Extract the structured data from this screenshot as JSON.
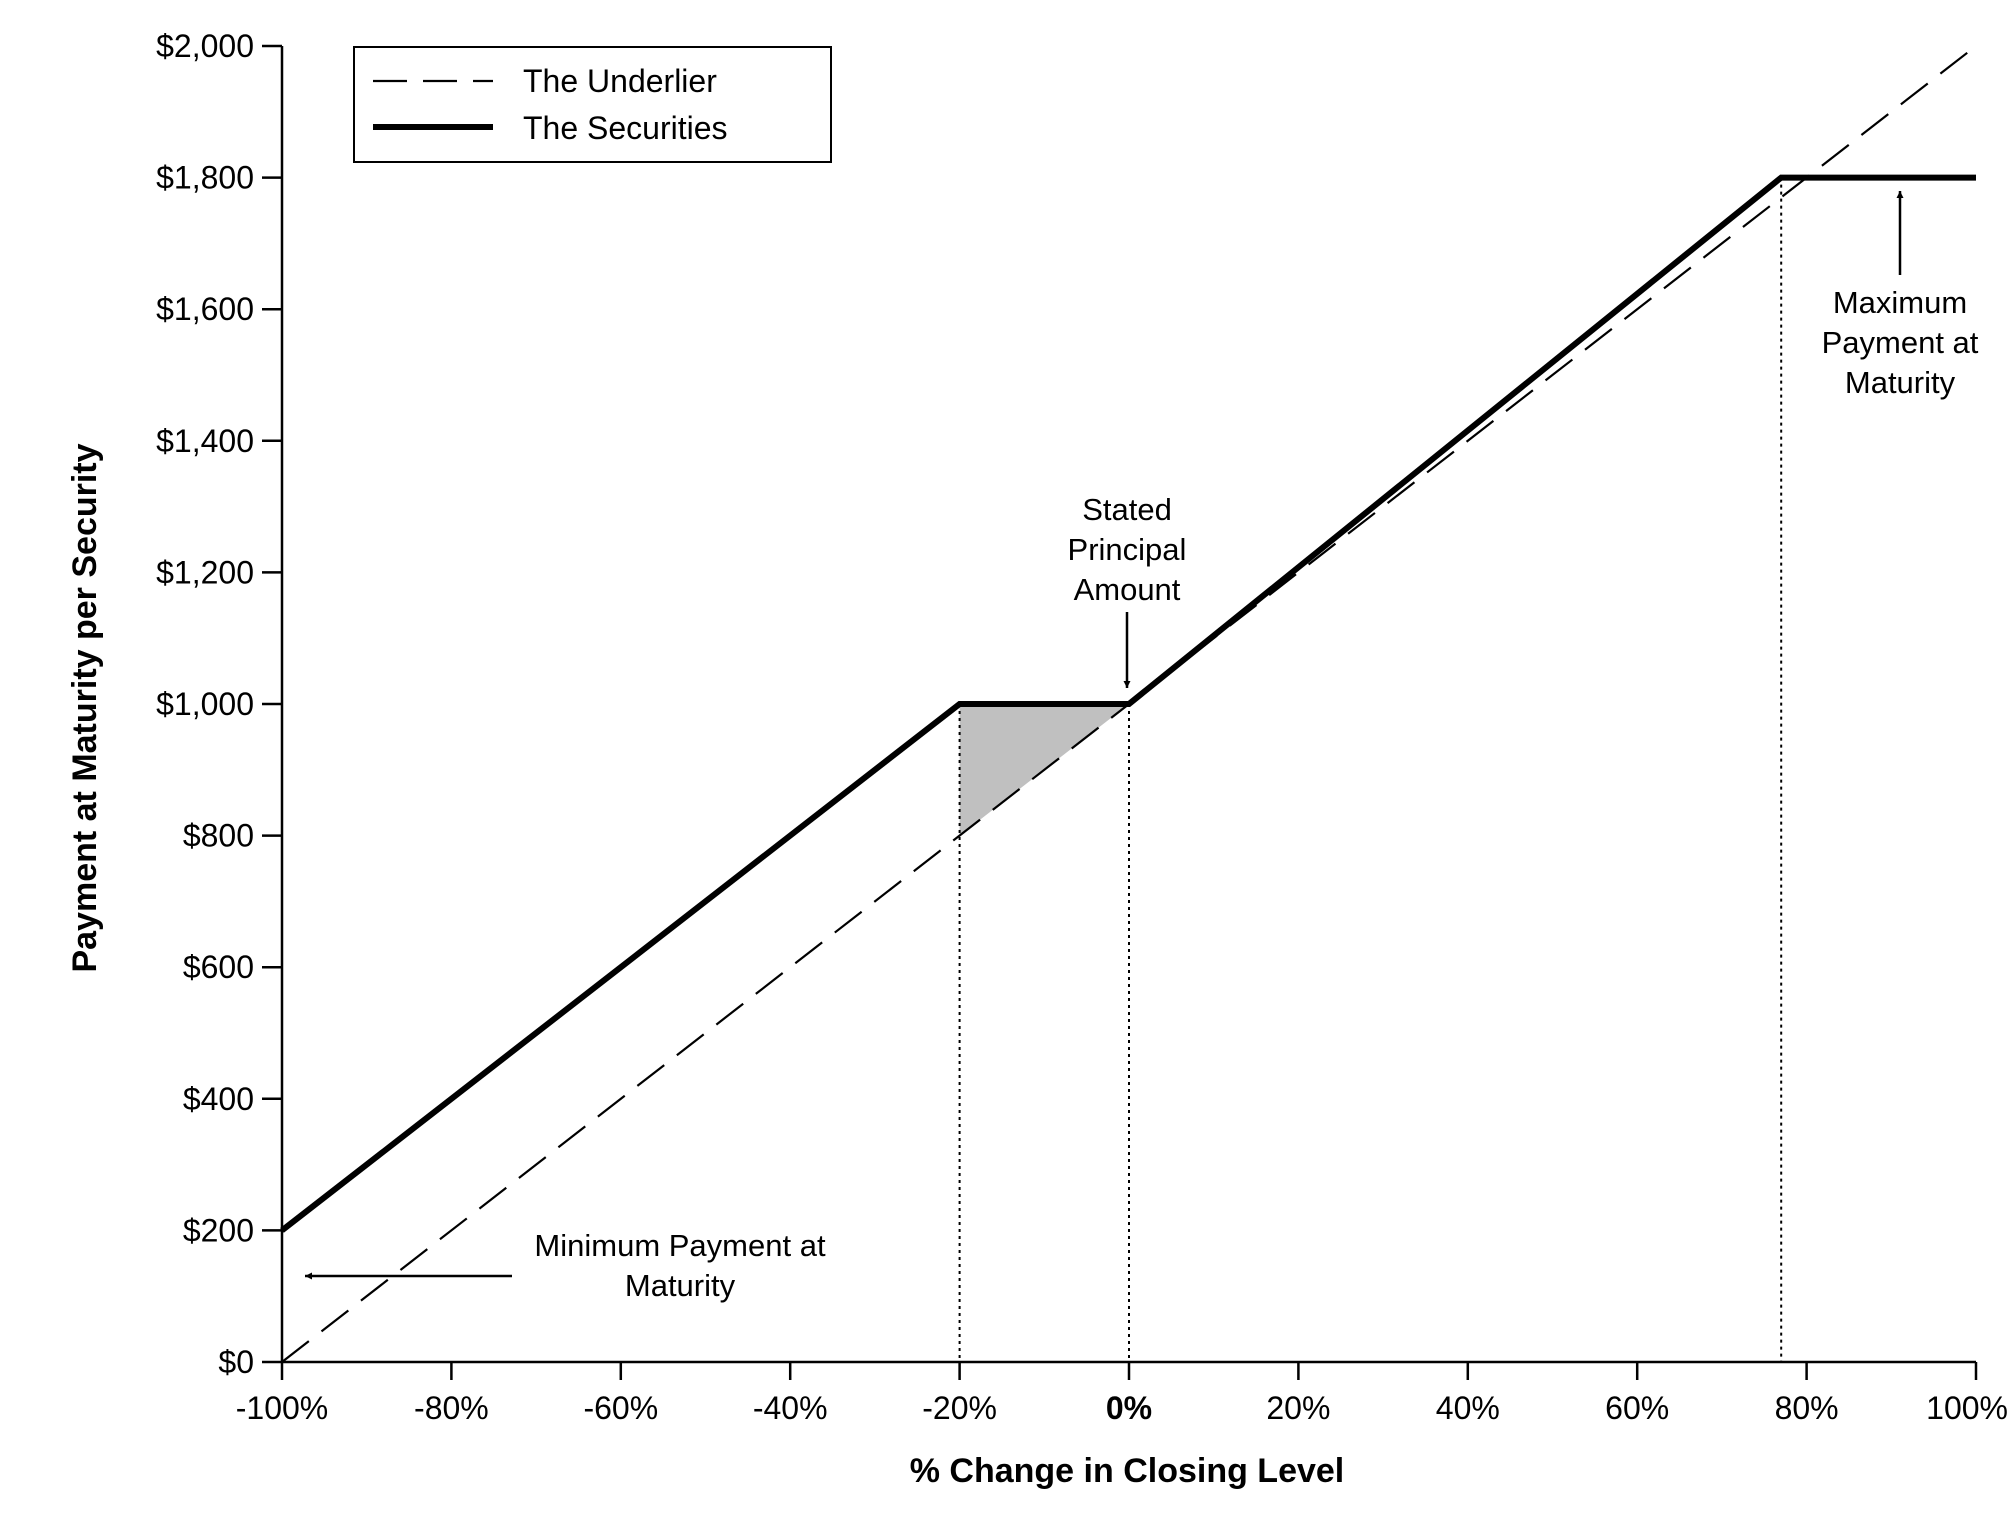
{
  "chart_data": {
    "type": "line",
    "xlabel": "% Change in Closing Level",
    "ylabel": "Payment at Maturity per Security",
    "xlim": [
      -100,
      100
    ],
    "ylim": [
      0,
      2000
    ],
    "x_ticks": [
      -100,
      -80,
      -60,
      -40,
      -20,
      0,
      20,
      40,
      60,
      80,
      100
    ],
    "x_tick_labels": [
      "-100%",
      "-80%",
      "-60%",
      "-40%",
      "-20%",
      "0%",
      "20%",
      "40%",
      "60%",
      "80%",
      "100%"
    ],
    "y_ticks": [
      0,
      200,
      400,
      600,
      800,
      1000,
      1200,
      1400,
      1600,
      1800,
      2000
    ],
    "y_tick_labels": [
      "$0",
      "$200",
      "$400",
      "$600",
      "$800",
      "$1,000",
      "$1,200",
      "$1,400",
      "$1,600",
      "$1,800",
      "$2,000"
    ],
    "series": [
      {
        "name": "The Underlier",
        "style": "dashed",
        "color": "#000000",
        "x": [
          -100,
          100
        ],
        "y": [
          0,
          2000
        ]
      },
      {
        "name": "The Securities",
        "style": "solid-thick",
        "color": "#000000",
        "x": [
          -100,
          -20,
          0,
          77,
          100
        ],
        "y": [
          200,
          1000,
          1000,
          1800,
          1800
        ]
      }
    ],
    "shaded_region": {
      "color": "#c0c0c0",
      "points": [
        [
          -20,
          1000
        ],
        [
          0,
          1000
        ],
        [
          -20,
          800
        ]
      ]
    },
    "reference_lines_x": [
      -20,
      0,
      77
    ],
    "legend_position": "top-left",
    "grid": false,
    "annotations": [
      {
        "lines": [
          "Stated",
          "Principal",
          "Amount"
        ],
        "x": 0,
        "y": 1000
      },
      {
        "lines": [
          "Maximum",
          "Payment at",
          "Maturity"
        ],
        "x": 90,
        "y": 1800
      },
      {
        "lines": [
          "Minimum Payment at",
          "Maturity"
        ],
        "x": -100,
        "y": 200
      }
    ]
  }
}
